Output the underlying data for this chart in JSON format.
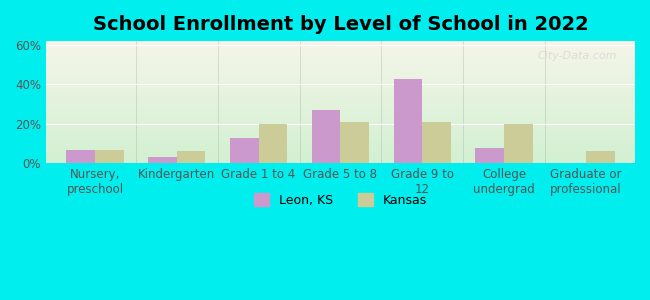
{
  "title": "School Enrollment by Level of School in 2022",
  "categories": [
    "Nursery,\npreschool",
    "Kindergarten",
    "Grade 1 to 4",
    "Grade 5 to 8",
    "Grade 9 to\n12",
    "College\nundergrad",
    "Graduate or\nprofessional"
  ],
  "leon_values": [
    7,
    3,
    13,
    27,
    43,
    8,
    0
  ],
  "kansas_values": [
    7,
    6,
    20,
    21,
    21,
    20,
    6
  ],
  "leon_color": "#CC99CC",
  "kansas_color": "#CCCC99",
  "background_outer": "#00EEEE",
  "ylim": [
    0,
    62
  ],
  "yticks": [
    0,
    20,
    40,
    60
  ],
  "ytick_labels": [
    "0%",
    "20%",
    "40%",
    "60%"
  ],
  "legend_labels": [
    "Leon, KS",
    "Kansas"
  ],
  "watermark": "City-Data.com",
  "bar_width": 0.35,
  "title_fontsize": 14,
  "tick_fontsize": 8.5,
  "legend_fontsize": 9
}
